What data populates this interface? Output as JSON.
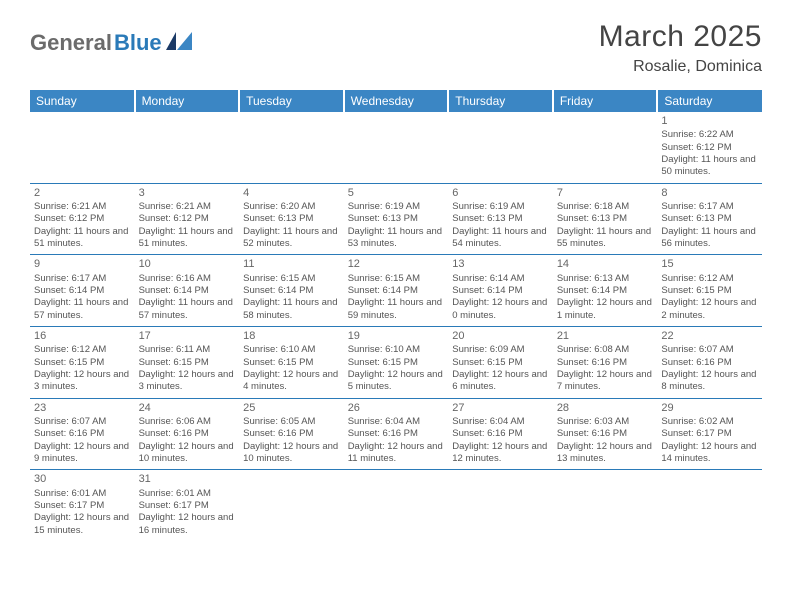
{
  "logo": {
    "part1": "General",
    "part2": "Blue"
  },
  "title": "March 2025",
  "location": "Rosalie, Dominica",
  "colors": {
    "header_bg": "#3b86c4",
    "accent": "#2a7ab8",
    "logo_gray": "#6b6b6b",
    "text": "#555555",
    "page_bg": "#ffffff"
  },
  "weekdays": [
    "Sunday",
    "Monday",
    "Tuesday",
    "Wednesday",
    "Thursday",
    "Friday",
    "Saturday"
  ],
  "weeks": [
    [
      null,
      null,
      null,
      null,
      null,
      null,
      {
        "n": "1",
        "sr": "Sunrise: 6:22 AM",
        "ss": "Sunset: 6:12 PM",
        "dl": "Daylight: 11 hours and 50 minutes."
      }
    ],
    [
      {
        "n": "2",
        "sr": "Sunrise: 6:21 AM",
        "ss": "Sunset: 6:12 PM",
        "dl": "Daylight: 11 hours and 51 minutes."
      },
      {
        "n": "3",
        "sr": "Sunrise: 6:21 AM",
        "ss": "Sunset: 6:12 PM",
        "dl": "Daylight: 11 hours and 51 minutes."
      },
      {
        "n": "4",
        "sr": "Sunrise: 6:20 AM",
        "ss": "Sunset: 6:13 PM",
        "dl": "Daylight: 11 hours and 52 minutes."
      },
      {
        "n": "5",
        "sr": "Sunrise: 6:19 AM",
        "ss": "Sunset: 6:13 PM",
        "dl": "Daylight: 11 hours and 53 minutes."
      },
      {
        "n": "6",
        "sr": "Sunrise: 6:19 AM",
        "ss": "Sunset: 6:13 PM",
        "dl": "Daylight: 11 hours and 54 minutes."
      },
      {
        "n": "7",
        "sr": "Sunrise: 6:18 AM",
        "ss": "Sunset: 6:13 PM",
        "dl": "Daylight: 11 hours and 55 minutes."
      },
      {
        "n": "8",
        "sr": "Sunrise: 6:17 AM",
        "ss": "Sunset: 6:13 PM",
        "dl": "Daylight: 11 hours and 56 minutes."
      }
    ],
    [
      {
        "n": "9",
        "sr": "Sunrise: 6:17 AM",
        "ss": "Sunset: 6:14 PM",
        "dl": "Daylight: 11 hours and 57 minutes."
      },
      {
        "n": "10",
        "sr": "Sunrise: 6:16 AM",
        "ss": "Sunset: 6:14 PM",
        "dl": "Daylight: 11 hours and 57 minutes."
      },
      {
        "n": "11",
        "sr": "Sunrise: 6:15 AM",
        "ss": "Sunset: 6:14 PM",
        "dl": "Daylight: 11 hours and 58 minutes."
      },
      {
        "n": "12",
        "sr": "Sunrise: 6:15 AM",
        "ss": "Sunset: 6:14 PM",
        "dl": "Daylight: 11 hours and 59 minutes."
      },
      {
        "n": "13",
        "sr": "Sunrise: 6:14 AM",
        "ss": "Sunset: 6:14 PM",
        "dl": "Daylight: 12 hours and 0 minutes."
      },
      {
        "n": "14",
        "sr": "Sunrise: 6:13 AM",
        "ss": "Sunset: 6:14 PM",
        "dl": "Daylight: 12 hours and 1 minute."
      },
      {
        "n": "15",
        "sr": "Sunrise: 6:12 AM",
        "ss": "Sunset: 6:15 PM",
        "dl": "Daylight: 12 hours and 2 minutes."
      }
    ],
    [
      {
        "n": "16",
        "sr": "Sunrise: 6:12 AM",
        "ss": "Sunset: 6:15 PM",
        "dl": "Daylight: 12 hours and 3 minutes."
      },
      {
        "n": "17",
        "sr": "Sunrise: 6:11 AM",
        "ss": "Sunset: 6:15 PM",
        "dl": "Daylight: 12 hours and 3 minutes."
      },
      {
        "n": "18",
        "sr": "Sunrise: 6:10 AM",
        "ss": "Sunset: 6:15 PM",
        "dl": "Daylight: 12 hours and 4 minutes."
      },
      {
        "n": "19",
        "sr": "Sunrise: 6:10 AM",
        "ss": "Sunset: 6:15 PM",
        "dl": "Daylight: 12 hours and 5 minutes."
      },
      {
        "n": "20",
        "sr": "Sunrise: 6:09 AM",
        "ss": "Sunset: 6:15 PM",
        "dl": "Daylight: 12 hours and 6 minutes."
      },
      {
        "n": "21",
        "sr": "Sunrise: 6:08 AM",
        "ss": "Sunset: 6:16 PM",
        "dl": "Daylight: 12 hours and 7 minutes."
      },
      {
        "n": "22",
        "sr": "Sunrise: 6:07 AM",
        "ss": "Sunset: 6:16 PM",
        "dl": "Daylight: 12 hours and 8 minutes."
      }
    ],
    [
      {
        "n": "23",
        "sr": "Sunrise: 6:07 AM",
        "ss": "Sunset: 6:16 PM",
        "dl": "Daylight: 12 hours and 9 minutes."
      },
      {
        "n": "24",
        "sr": "Sunrise: 6:06 AM",
        "ss": "Sunset: 6:16 PM",
        "dl": "Daylight: 12 hours and 10 minutes."
      },
      {
        "n": "25",
        "sr": "Sunrise: 6:05 AM",
        "ss": "Sunset: 6:16 PM",
        "dl": "Daylight: 12 hours and 10 minutes."
      },
      {
        "n": "26",
        "sr": "Sunrise: 6:04 AM",
        "ss": "Sunset: 6:16 PM",
        "dl": "Daylight: 12 hours and 11 minutes."
      },
      {
        "n": "27",
        "sr": "Sunrise: 6:04 AM",
        "ss": "Sunset: 6:16 PM",
        "dl": "Daylight: 12 hours and 12 minutes."
      },
      {
        "n": "28",
        "sr": "Sunrise: 6:03 AM",
        "ss": "Sunset: 6:16 PM",
        "dl": "Daylight: 12 hours and 13 minutes."
      },
      {
        "n": "29",
        "sr": "Sunrise: 6:02 AM",
        "ss": "Sunset: 6:17 PM",
        "dl": "Daylight: 12 hours and 14 minutes."
      }
    ],
    [
      {
        "n": "30",
        "sr": "Sunrise: 6:01 AM",
        "ss": "Sunset: 6:17 PM",
        "dl": "Daylight: 12 hours and 15 minutes."
      },
      {
        "n": "31",
        "sr": "Sunrise: 6:01 AM",
        "ss": "Sunset: 6:17 PM",
        "dl": "Daylight: 12 hours and 16 minutes."
      },
      null,
      null,
      null,
      null,
      null
    ]
  ]
}
